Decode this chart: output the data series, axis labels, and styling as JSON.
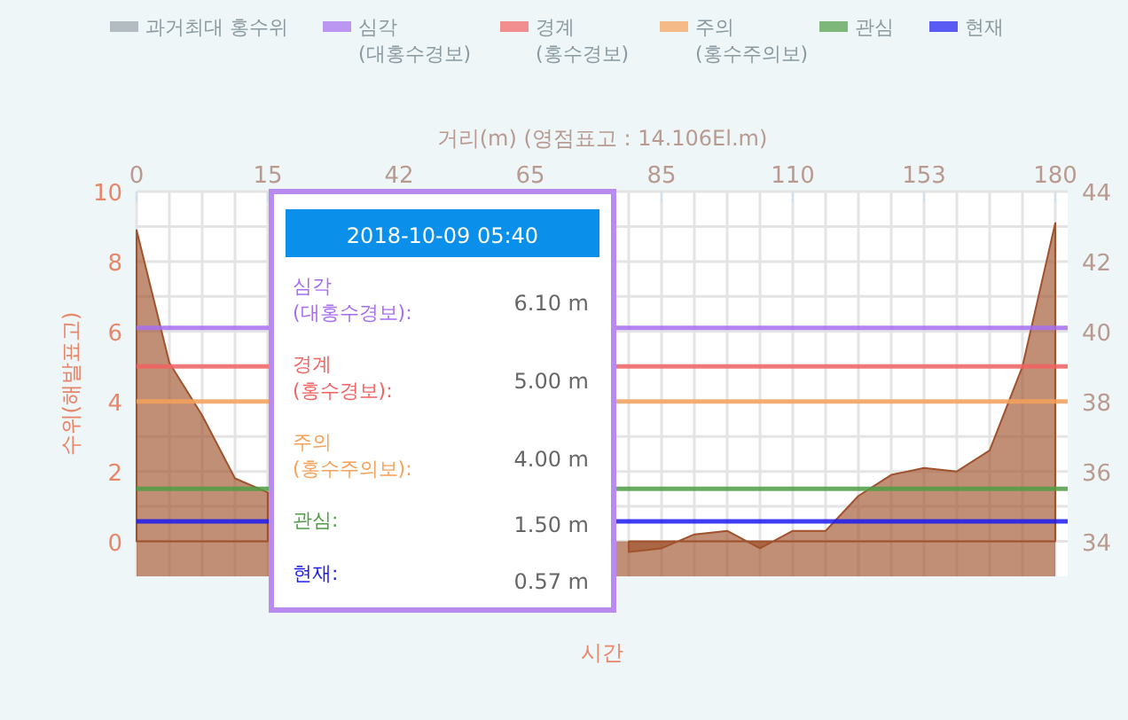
{
  "chart_data": {
    "type": "area",
    "x2label": "거리(m) (영점표고 : 14.106El.m)",
    "ylabel": "수위(해발표고)",
    "xlabel": "시간",
    "categories": [
      "0",
      null,
      null,
      null,
      "15",
      null,
      null,
      null,
      "42",
      null,
      null,
      null,
      "65",
      null,
      null,
      null,
      "85",
      null,
      null,
      null,
      "110",
      null,
      null,
      null,
      "153",
      null,
      null,
      null,
      "180"
    ],
    "series": [
      {
        "color": "#a0522d",
        "values": [
          8.9,
          5.1,
          3.6,
          1.8,
          1.4,
          null,
          null,
          null,
          null,
          null,
          null,
          null,
          null,
          null,
          null,
          -0.3,
          -0.2,
          0.2,
          0.3,
          -0.2,
          0.3,
          0.3,
          1.3,
          1.9,
          2.1,
          2.0,
          2.6,
          5.0,
          9.1
        ]
      },
      {
        "name": "과거최대 홍수위",
        "color": "#9aa4a8",
        "values": [
          null,
          null,
          null,
          null,
          null,
          null,
          null,
          null,
          null,
          null,
          null,
          null,
          null,
          null,
          null,
          null,
          null,
          null,
          null,
          null,
          null,
          null,
          null,
          null,
          null,
          null,
          null,
          null,
          null
        ]
      }
    ],
    "ref_lines": [
      {
        "axis": "y",
        "value": 6.1,
        "label": "심각\n(대홍수경보)",
        "color": "#a66ff0"
      },
      {
        "axis": "y",
        "value": 5.0,
        "label": "경계\n(홍수경보)",
        "color": "#f26464"
      },
      {
        "axis": "y",
        "value": 4.0,
        "label": "주의\n(홍수주의보)",
        "color": "#f6a25a"
      },
      {
        "axis": "y",
        "value": 1.5,
        "label": "관심",
        "color": "#4f9d45"
      },
      {
        "axis": "y",
        "value": 0.57,
        "label": "현재",
        "color": "#1a1af0"
      }
    ],
    "bands": [
      {
        "axis": "y",
        "from": -1,
        "to": 0,
        "color": "#a0522d"
      }
    ],
    "ylim": [
      -1,
      10
    ],
    "yticks": [
      0,
      {
        "value": 1,
        "label": null
      },
      2,
      {
        "value": 3,
        "label": null
      },
      4,
      {
        "value": 5,
        "label": null
      },
      6,
      {
        "value": 7,
        "label": null
      },
      8,
      {
        "value": 9,
        "label": null
      },
      10
    ],
    "y2lim": [
      33,
      44
    ],
    "y2ticks": [
      34,
      36,
      38,
      40,
      42,
      44
    ],
    "grid": true,
    "legend": "top",
    "annotations": [
      "2018-10-09 05:40",
      "심각\n(대홍수경보):",
      "6.10 m",
      "경계\n(홍수경보):",
      "5.00 m",
      "주의\n(홍수주의보):",
      "4.00 m",
      "관심:",
      "1.50 m",
      "현재:",
      "0.57 m"
    ]
  }
}
